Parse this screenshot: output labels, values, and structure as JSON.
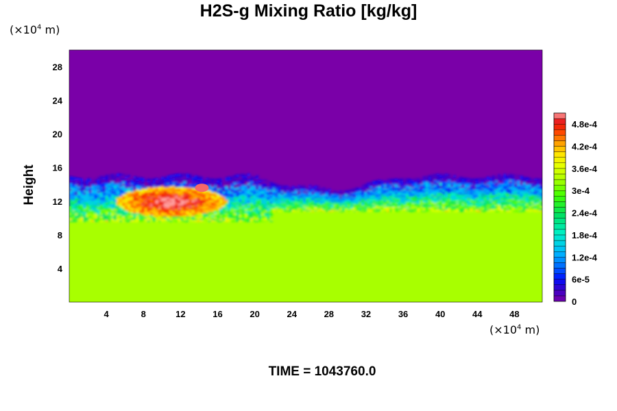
{
  "chart_data": {
    "type": "heatmap",
    "title": "H2S-g Mixing Ratio [kg/kg]",
    "xunit": "×10⁴ m",
    "yunit": "×10⁴ m",
    "xunit_base": "(×10",
    "xunit_exp": "4",
    "xunit_tail": " m)",
    "ylabel": "Height",
    "xlabel": "",
    "xlim": [
      0,
      51
    ],
    "ylim": [
      0,
      30
    ],
    "x_ticks": [
      "4",
      "8",
      "12",
      "16",
      "20",
      "24",
      "28",
      "32",
      "36",
      "40",
      "44",
      "48"
    ],
    "y_ticks": [
      "4",
      "8",
      "12",
      "16",
      "20",
      "24",
      "28"
    ],
    "colorbar": {
      "range": [
        0,
        0.00051
      ],
      "tick_labels": [
        "0",
        "6e-5",
        "1.2e-4",
        "1.8e-4",
        "2.4e-4",
        "3e-4",
        "3.6e-4",
        "4.2e-4",
        "4.8e-4"
      ],
      "tick_values": [
        0,
        6e-05,
        0.00012,
        0.00018,
        0.00024,
        0.0003,
        0.00036,
        0.00042,
        0.00048
      ]
    },
    "fields": {
      "lower_layer_value": 0.00033,
      "upper_layer_value": 0.0,
      "interface_height": 12,
      "interface_top": 15,
      "peak_value": 0.0005,
      "peak_region": "x 10-16, height 11-14"
    },
    "grid": false,
    "legend": "colorbar right"
  },
  "footer": {
    "time_label": "TIME = 1043760.0"
  },
  "colors": {
    "background_upper": "#7a00a8",
    "lower_layer": "#dfff00"
  }
}
